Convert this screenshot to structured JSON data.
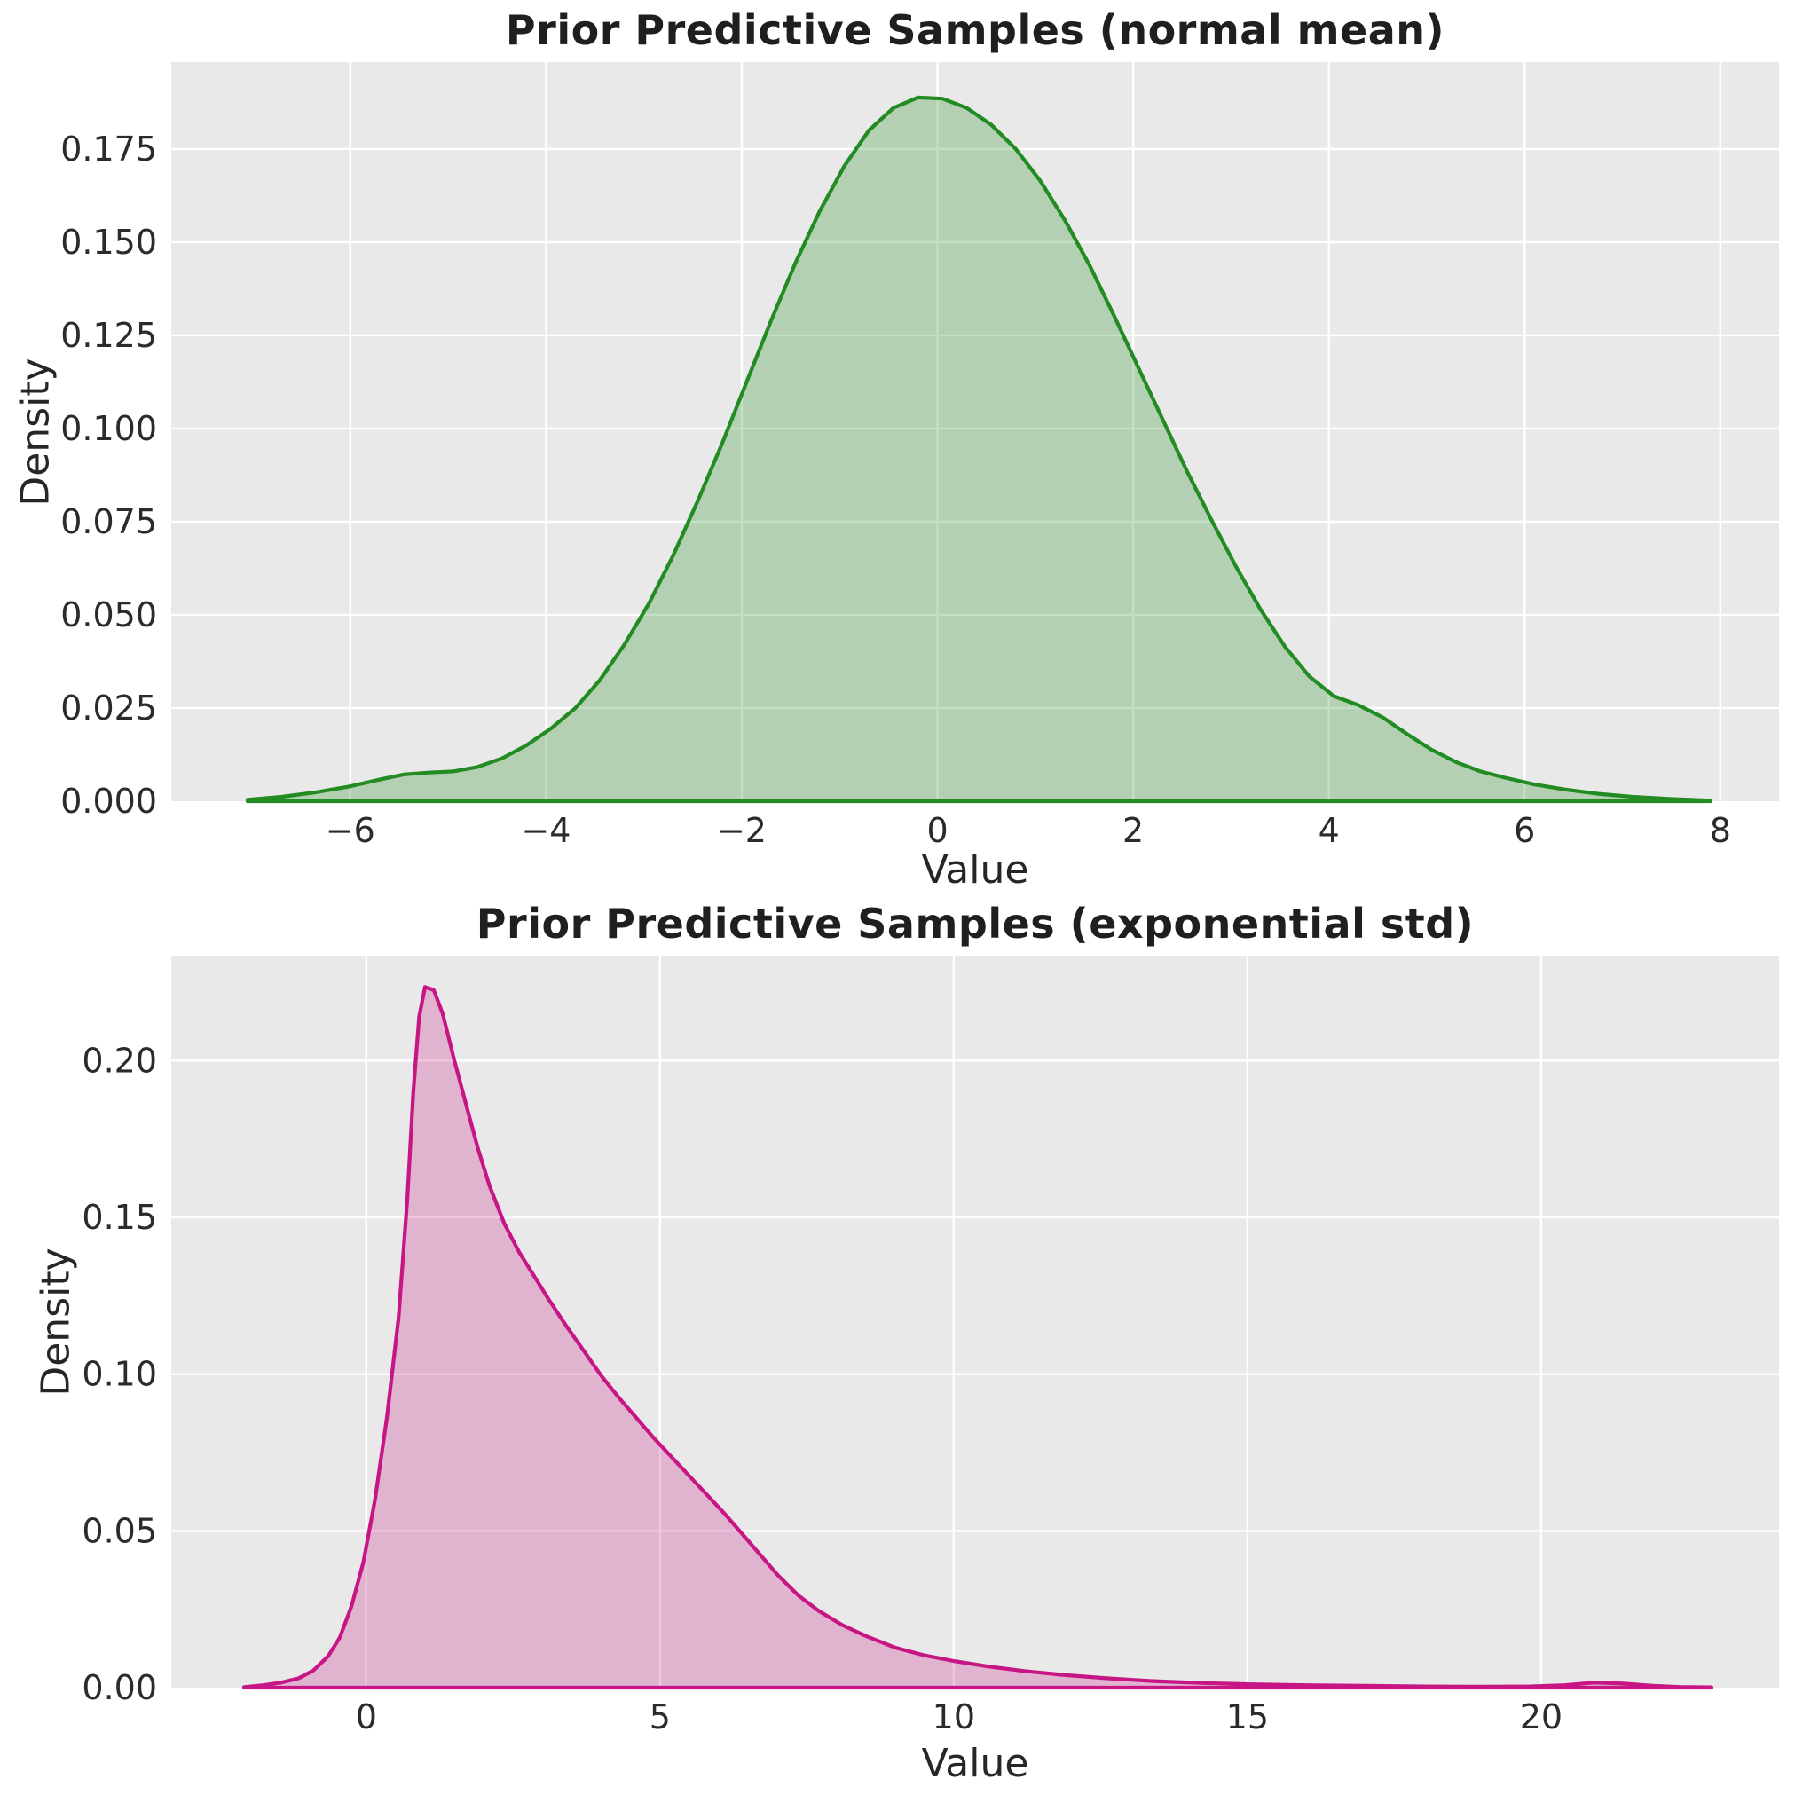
{
  "figure": {
    "background": "#ffffff",
    "axes_background": "#e9e9e9",
    "grid_color": "#ffffff",
    "tick_color": "#2b2b2b",
    "title_color": "#1f1f1f"
  },
  "chart_data": [
    {
      "type": "area",
      "kind": "kde-density",
      "title": "Prior Predictive Samples (normal mean)",
      "xlabel": "Value",
      "ylabel": "Density",
      "line_color": "#228b22",
      "fill_opacity": 0.27,
      "grid": true,
      "legend": null,
      "xlim": [
        -7.83,
        8.6
      ],
      "ylim": [
        0,
        0.1983
      ],
      "xticks": [
        -6,
        -4,
        -2,
        0,
        2,
        4,
        6,
        8
      ],
      "xtick_labels": [
        "−6",
        "−4",
        "−2",
        "0",
        "2",
        "4",
        "6",
        "8"
      ],
      "yticks": [
        0,
        0.025,
        0.05,
        0.075,
        0.1,
        0.125,
        0.15,
        0.175
      ],
      "ytick_labels": [
        "0.000",
        "0.025",
        "0.050",
        "0.075",
        "0.100",
        "0.125",
        "0.150",
        "0.175"
      ],
      "x": [
        -7.05,
        -6.7,
        -6.35,
        -6.0,
        -5.7,
        -5.45,
        -5.2,
        -4.95,
        -4.7,
        -4.45,
        -4.2,
        -3.95,
        -3.7,
        -3.45,
        -3.2,
        -2.95,
        -2.7,
        -2.45,
        -2.2,
        -1.95,
        -1.7,
        -1.45,
        -1.2,
        -0.95,
        -0.7,
        -0.45,
        -0.2,
        0.05,
        0.3,
        0.55,
        0.8,
        1.05,
        1.3,
        1.55,
        1.8,
        2.05,
        2.3,
        2.55,
        2.8,
        3.05,
        3.3,
        3.55,
        3.8,
        4.05,
        4.3,
        4.55,
        4.8,
        5.05,
        5.3,
        5.55,
        5.8,
        6.1,
        6.4,
        6.75,
        7.1,
        7.5,
        7.9
      ],
      "y": [
        0.0004,
        0.0012,
        0.0024,
        0.004,
        0.0058,
        0.0072,
        0.0077,
        0.008,
        0.0092,
        0.0115,
        0.015,
        0.0195,
        0.025,
        0.0325,
        0.042,
        0.053,
        0.066,
        0.0805,
        0.096,
        0.1125,
        0.129,
        0.1445,
        0.1585,
        0.1705,
        0.18,
        0.186,
        0.1888,
        0.1885,
        0.186,
        0.1815,
        0.175,
        0.1665,
        0.156,
        0.144,
        0.1305,
        0.1165,
        0.1025,
        0.0885,
        0.0755,
        0.063,
        0.0515,
        0.0415,
        0.0335,
        0.0282,
        0.0258,
        0.0225,
        0.018,
        0.0138,
        0.0105,
        0.008,
        0.0063,
        0.0045,
        0.0032,
        0.002,
        0.0012,
        0.0006,
        0.0002
      ],
      "peak": {
        "x": -0.2,
        "density": 0.189
      }
    },
    {
      "type": "area",
      "kind": "kde-density",
      "title": "Prior Predictive Samples (exponential std)",
      "xlabel": "Value",
      "ylabel": "Density",
      "line_color": "#c71585",
      "fill_opacity": 0.25,
      "grid": true,
      "legend": null,
      "xlim": [
        -3.32,
        24.05
      ],
      "ylim": [
        0,
        0.2335
      ],
      "xticks": [
        0,
        5,
        10,
        15,
        20
      ],
      "xtick_labels": [
        "0",
        "5",
        "10",
        "15",
        "20"
      ],
      "yticks": [
        0,
        0.05,
        0.1,
        0.15,
        0.2
      ],
      "ytick_labels": [
        "0.00",
        "0.05",
        "0.10",
        "0.15",
        "0.20"
      ],
      "x": [
        -2.08,
        -1.75,
        -1.45,
        -1.15,
        -0.9,
        -0.65,
        -0.45,
        -0.25,
        -0.05,
        0.15,
        0.35,
        0.55,
        0.7,
        0.8,
        0.9,
        1.0,
        1.15,
        1.3,
        1.5,
        1.7,
        1.9,
        2.1,
        2.35,
        2.6,
        2.85,
        3.1,
        3.4,
        3.7,
        4.0,
        4.3,
        4.6,
        4.9,
        5.2,
        5.5,
        5.8,
        6.1,
        6.4,
        6.7,
        7.0,
        7.35,
        7.7,
        8.1,
        8.5,
        9.0,
        9.5,
        10.0,
        10.6,
        11.2,
        11.9,
        12.6,
        13.4,
        14.2,
        15.0,
        16.0,
        17.0,
        18.0,
        19.0,
        19.8,
        20.4,
        20.9,
        21.4,
        21.9,
        22.4,
        22.9
      ],
      "y": [
        0.0002,
        0.0008,
        0.0016,
        0.003,
        0.0055,
        0.01,
        0.016,
        0.026,
        0.04,
        0.06,
        0.086,
        0.118,
        0.156,
        0.19,
        0.214,
        0.2235,
        0.2225,
        0.215,
        0.2,
        0.186,
        0.172,
        0.16,
        0.148,
        0.139,
        0.1315,
        0.124,
        0.1155,
        0.1075,
        0.0995,
        0.0925,
        0.086,
        0.0795,
        0.0735,
        0.0675,
        0.0615,
        0.0555,
        0.049,
        0.0425,
        0.036,
        0.0295,
        0.0245,
        0.02,
        0.0165,
        0.0128,
        0.0103,
        0.0085,
        0.0067,
        0.0053,
        0.004,
        0.003,
        0.0021,
        0.0015,
        0.0011,
        0.0008,
        0.0006,
        0.0004,
        0.0003,
        0.0004,
        0.0008,
        0.0016,
        0.0013,
        0.0006,
        0.0002,
        0.0001
      ],
      "peak": {
        "x": 0.95,
        "density": 0.224
      }
    }
  ]
}
